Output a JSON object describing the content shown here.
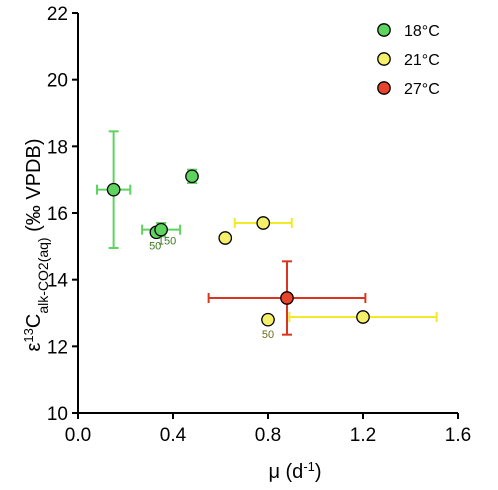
{
  "chart_data": {
    "type": "scatter",
    "xlabel_base": "μ (d",
    "xlabel_sup": "-1",
    "xlabel_end": ")",
    "ylabel_epsilon": "ε",
    "ylabel_sup": "13",
    "ylabel_C": "C",
    "ylabel_sub": "alk-CO2(aq)",
    "ylabel_tail": " (‰ VPDB)",
    "xlim": [
      0.0,
      1.6
    ],
    "ylim": [
      10,
      22
    ],
    "xticks": [
      "0.0",
      "0.4",
      "0.8",
      "1.2",
      "1.6"
    ],
    "yticks": [
      "10",
      "12",
      "14",
      "16",
      "18",
      "20",
      "22"
    ],
    "grid": false,
    "legend_placement": "top-right",
    "series": [
      {
        "name": "18°C",
        "color": "#5fd35f",
        "errcolor": "#5fd35f",
        "points": [
          {
            "x": 0.15,
            "y": 16.7,
            "xerr": 0.07,
            "yerr": 1.75
          },
          {
            "x": 0.33,
            "y": 15.42,
            "xerr": 0.0,
            "yerr": 0.0
          },
          {
            "x": 0.35,
            "y": 15.5,
            "xerr": 0.08,
            "yerr": 0.2
          },
          {
            "x": 0.48,
            "y": 17.1,
            "xerr": 0.0,
            "yerr": 0.2
          }
        ]
      },
      {
        "name": "21°C",
        "color": "#f4f06a",
        "errcolor": "#f2ea28",
        "points": [
          {
            "x": 0.62,
            "y": 15.25,
            "xerr": 0.0,
            "yerr": 0.0
          },
          {
            "x": 0.78,
            "y": 15.7,
            "xerr": 0.12,
            "yerr": 0.0
          },
          {
            "x": 0.8,
            "y": 12.8,
            "xerr": 0.0,
            "yerr": 0.0
          },
          {
            "x": 1.2,
            "y": 12.88,
            "xerr": 0.31,
            "yerr": 0.0
          }
        ]
      },
      {
        "name": "27°C",
        "color": "#e8432c",
        "errcolor": "#d9361f",
        "points": [
          {
            "x": 0.88,
            "y": 13.45,
            "xerr": 0.33,
            "yerr": 1.1
          }
        ]
      }
    ],
    "annotations": [
      {
        "text": "50",
        "x": 0.325,
        "y": 14.9,
        "color": "#3b7a1f"
      },
      {
        "text": "150",
        "x": 0.375,
        "y": 15.05,
        "color": "#3b7a1f"
      },
      {
        "text": "50",
        "x": 0.8,
        "y": 12.25,
        "color": "#6b6b1a"
      }
    ]
  }
}
